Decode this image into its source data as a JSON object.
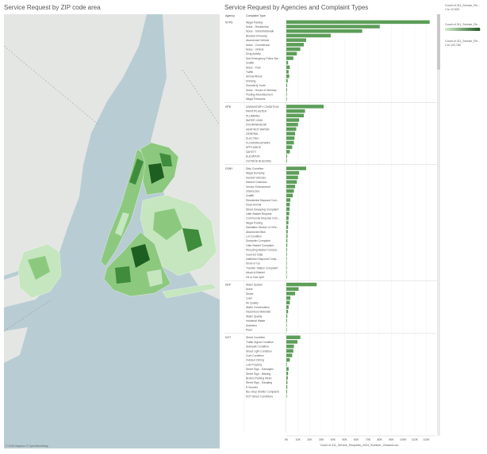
{
  "map": {
    "title": "Service Request by ZIP code area",
    "attribution": "© 2025 Mapbox © OpenStreetMap"
  },
  "bar_chart": {
    "title": "Service Request by Agencies and Complaint Types",
    "col_agency": "Agency",
    "col_type": "Complaint Type",
    "x_axis_title": "Count of 311_Service_Requests_2024_Summer_Cleaned.csv"
  },
  "legends": [
    {
      "title": "Count of 311_Service_Re...",
      "range": "1 to 12,925",
      "has_bar": false
    },
    {
      "title": "Count of 311_Service_Re...",
      "range": "",
      "max_label": "12,925",
      "has_bar": true
    },
    {
      "title": "Count of 311_Service_Re...",
      "range": "1 to 122,780",
      "has_bar": false
    }
  ],
  "colors": {
    "bar": "#5d9e59",
    "water": "#b8cdd3",
    "land": "#e4e6e3",
    "zip_light": "#c5e6bf",
    "zip_mid": "#8cc97f",
    "zip_dark": "#3f8c3c",
    "zip_darkest": "#1f5e21"
  },
  "chart_data": {
    "type": "bar",
    "orientation": "horizontal",
    "xlim": [
      0,
      125000
    ],
    "x_ticks": [
      0,
      10000,
      20000,
      30000,
      40000,
      50000,
      60000,
      70000,
      80000,
      90000,
      100000,
      110000,
      120000
    ],
    "x_tick_labels": [
      "0K",
      "10K",
      "20K",
      "30K",
      "40K",
      "50K",
      "60K",
      "70K",
      "80K",
      "90K",
      "100K",
      "110K",
      "120K"
    ],
    "groups": [
      {
        "agency": "NYPD",
        "types": [
          "Illegal Parking",
          "Noise - Residential",
          "Noise - Street/Sidewalk",
          "Blocked Driveway",
          "Abandoned Vehicle",
          "Noise - Commercial",
          "Noise - Vehicle",
          "Drug Activity",
          "Non-Emergency Police Ma...",
          "Graffiti",
          "Noise - Park",
          "Traffic",
          "Animal Abuse",
          "Drinking",
          "Disorderly Youth",
          "Noise - House of Worship",
          "Posting Advertisement",
          "Illegal Fireworks"
        ],
        "values": [
          122780,
          80000,
          65000,
          38000,
          17000,
          15000,
          12000,
          9000,
          6000,
          1500,
          3000,
          2000,
          2500,
          1200,
          700,
          600,
          400,
          300
        ]
      },
      {
        "agency": "HPD",
        "types": [
          "UNSANITARY CONDITION",
          "PAINT/PLASTER",
          "PLUMBING",
          "WATER LEAK",
          "DOOR/WINDOW",
          "HEAT/HOT WATER",
          "GENERAL",
          "ELECTRIC",
          "FLOORING/STAIRS",
          "APPLIANCE",
          "SAFETY",
          "ELEVATOR",
          "OUTSIDE BUILDING"
        ],
        "values": [
          32000,
          16000,
          15000,
          11000,
          10000,
          8500,
          7500,
          7000,
          6500,
          5000,
          3000,
          700,
          500
        ]
      },
      {
        "agency": "DSNY",
        "types": [
          "Dirty Condition",
          "Illegal Dumping",
          "Derelict Vehicles",
          "Missed Collection",
          "Vendor Enforcement",
          "Obstruction",
          "Graffiti",
          "Residential Disposal Com...",
          "Dead Animal",
          "Street Sweeping Complaint",
          "Litter Basket Request",
          "Commercial Disposal Com...",
          "Illegal Posting",
          "Sanitation Worker or Vehi...",
          "Abandoned Bike",
          "Lot Condition",
          "Dumpster Complaint",
          "Litter Basket Complaint",
          "Recycling Basket Compla...",
          "Incorrect Data",
          "Institution Disposal Comp...",
          "Snow or Ice",
          "Transfer Station Complaint",
          "Adopt-A-Basket",
          "Oil or Gas Spill"
        ],
        "values": [
          17000,
          11000,
          10000,
          9000,
          7500,
          6500,
          5500,
          3500,
          3000,
          2800,
          2500,
          2000,
          1800,
          1500,
          1200,
          1000,
          900,
          800,
          600,
          500,
          400,
          300,
          250,
          200,
          150
        ]
      },
      {
        "agency": "DEP",
        "types": [
          "Water System",
          "Noise",
          "Sewer",
          "Lead",
          "Air Quality",
          "Water Conservation",
          "Hazardous Materials",
          "Water Quality",
          "Industrial Waste",
          "Asbestos",
          "Plant"
        ],
        "values": [
          26000,
          10500,
          7500,
          3500,
          3000,
          2000,
          1500,
          800,
          600,
          400,
          150
        ]
      },
      {
        "agency": "DOT",
        "types": [
          "Street Condition",
          "Traffic Signal Condition",
          "Sidewalk Condition",
          "Street Light Condition",
          "Curb Condition",
          "Outdoor Dining",
          "Lost Property",
          "Street Sign - Damaged",
          "Street Sign - Missing",
          "Broken Parking Meter",
          "Street Sign - Dangling",
          "E-Scooter",
          "Bus Stop Shelter Complaint",
          "DOT Street Conditions"
        ],
        "values": [
          12000,
          9500,
          6500,
          6000,
          5000,
          3000,
          500,
          2000,
          1500,
          1200,
          900,
          800,
          600,
          400
        ]
      }
    ]
  }
}
